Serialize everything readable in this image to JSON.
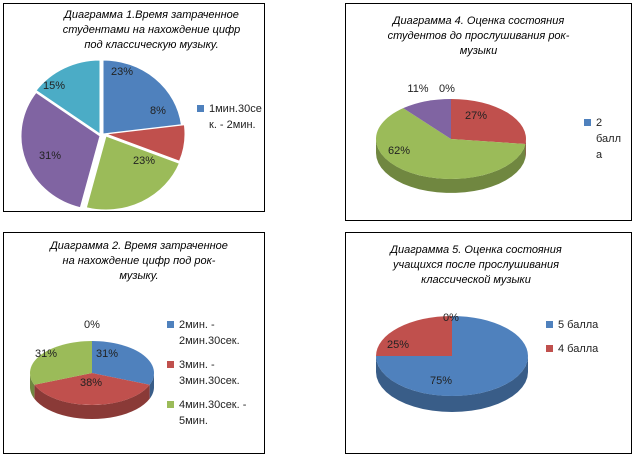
{
  "colors": {
    "blue": "#4f81bd",
    "red": "#c0504d",
    "green": "#9bbb59",
    "purple": "#8064a2",
    "teal": "#4bacc6"
  },
  "chart_data": [
    {
      "type": "pie",
      "title_lines": [
        "Диаграмма 1.Время затраченное",
        "студентами на нахождение цифр",
        "под классическую музыку."
      ],
      "slices": [
        {
          "label": "23%",
          "value": 23,
          "color": "#4f81bd"
        },
        {
          "label": "8%",
          "value": 8,
          "color": "#c0504d"
        },
        {
          "label": "23%",
          "value": 23,
          "color": "#9bbb59"
        },
        {
          "label": "31%",
          "value": 31,
          "color": "#8064a2"
        },
        {
          "label": "15%",
          "value": 15,
          "color": "#4bacc6"
        }
      ],
      "legend": [
        {
          "lines": [
            "1мин.30се",
            "к. - 2мин."
          ],
          "color": "#4f81bd"
        }
      ]
    },
    {
      "type": "pie",
      "title_lines": [
        "Диаграмма 4. Оценка состояния",
        "студентов до прослушивания рок-",
        "музыки"
      ],
      "slices": [
        {
          "label": "27%",
          "value": 27,
          "color": "#c0504d"
        },
        {
          "label": "62%",
          "value": 62,
          "color": "#9bbb59"
        },
        {
          "label": "11%",
          "value": 11,
          "color": "#8064a2"
        },
        {
          "label": "0%",
          "value": 0,
          "color": "#4f81bd"
        }
      ],
      "legend": [
        {
          "lines": [
            "2",
            "балл",
            "а"
          ],
          "color": "#4f81bd"
        }
      ]
    },
    {
      "type": "pie",
      "title_lines": [
        "Диаграмма 2. Время затраченное",
        "на нахождение цифр под рок-",
        "музыку."
      ],
      "slices": [
        {
          "label": "31%",
          "value": 31,
          "color": "#4f81bd"
        },
        {
          "label": "38%",
          "value": 38,
          "color": "#c0504d"
        },
        {
          "label": "31%",
          "value": 31,
          "color": "#9bbb59"
        },
        {
          "label": "0%",
          "value": 0,
          "color": "#8064a2"
        }
      ],
      "legend": [
        {
          "lines": [
            "2мин. -",
            "2мин.30сек."
          ],
          "color": "#4f81bd"
        },
        {
          "lines": [
            "3мин. -",
            "3мин.30сек."
          ],
          "color": "#c0504d"
        },
        {
          "lines": [
            "4мин.30сек. -",
            "5мин."
          ],
          "color": "#9bbb59"
        }
      ]
    },
    {
      "type": "pie",
      "title_lines": [
        "Диаграмма 5. Оценка состояния",
        "учащихся после прослушивания",
        "классической музыки"
      ],
      "slices": [
        {
          "label": "75%",
          "value": 75,
          "color": "#4f81bd"
        },
        {
          "label": "25%",
          "value": 25,
          "color": "#c0504d"
        },
        {
          "label": "0%",
          "value": 0,
          "color": "#9bbb59"
        }
      ],
      "legend": [
        {
          "lines": [
            "5 балла"
          ],
          "color": "#4f81bd"
        },
        {
          "lines": [
            "4 балла"
          ],
          "color": "#c0504d"
        }
      ]
    }
  ]
}
